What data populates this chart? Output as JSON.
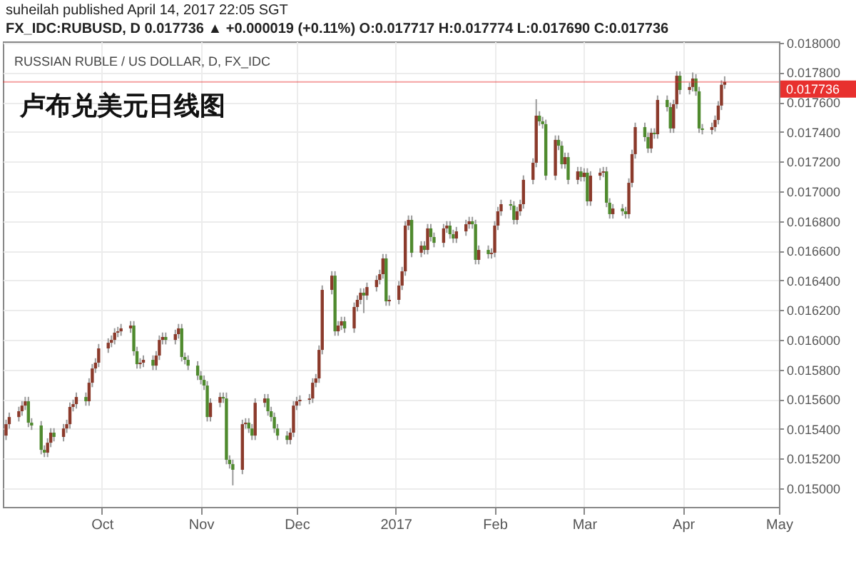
{
  "chart_data": {
    "type": "candlestick",
    "title": "RUSSIAN RUBLE / US DOLLAR, D, FX_IDC",
    "subtitle": "卢布兑美元日线图",
    "annotations": [
      "suheilah published April 14, 2017 22:05 SGT",
      "FX_IDC:RUBUSD, D  0.017736 ▲ +0.000019 (+0.11%)  O:0.017717  H:0.017774  L:0.017690  C:0.017736"
    ],
    "x": [
      "2016-09-01",
      "2016-09-02",
      "2016-09-05",
      "2016-09-06",
      "2016-09-07",
      "2016-09-08",
      "2016-09-09",
      "2016-09-12",
      "2016-09-13",
      "2016-09-14",
      "2016-09-15",
      "2016-09-16",
      "2016-09-19",
      "2016-09-20",
      "2016-09-21",
      "2016-09-22",
      "2016-09-23",
      "2016-09-26",
      "2016-09-27",
      "2016-09-28",
      "2016-09-29",
      "2016-09-30",
      "2016-10-03",
      "2016-10-04",
      "2016-10-05",
      "2016-10-06",
      "2016-10-07",
      "2016-10-10",
      "2016-10-11",
      "2016-10-12",
      "2016-10-13",
      "2016-10-14",
      "2016-10-17",
      "2016-10-18",
      "2016-10-19",
      "2016-10-20",
      "2016-10-21",
      "2016-10-24",
      "2016-10-25",
      "2016-10-26",
      "2016-10-27",
      "2016-10-28",
      "2016-10-31",
      "2016-11-01",
      "2016-11-02",
      "2016-11-03",
      "2016-11-04",
      "2016-11-07",
      "2016-11-08",
      "2016-11-09",
      "2016-11-10",
      "2016-11-11",
      "2016-11-14",
      "2016-11-15",
      "2016-11-16",
      "2016-11-17",
      "2016-11-18",
      "2016-11-21",
      "2016-11-22",
      "2016-11-23",
      "2016-11-24",
      "2016-11-25",
      "2016-11-28",
      "2016-11-29",
      "2016-11-30",
      "2016-12-01",
      "2016-12-02",
      "2016-12-05",
      "2016-12-06",
      "2016-12-07",
      "2016-12-08",
      "2016-12-09",
      "2016-12-12",
      "2016-12-13",
      "2016-12-14",
      "2016-12-15",
      "2016-12-16",
      "2016-12-19",
      "2016-12-20",
      "2016-12-21",
      "2016-12-22",
      "2016-12-23",
      "2016-12-26",
      "2016-12-27",
      "2016-12-28",
      "2016-12-29",
      "2016-12-30",
      "2017-01-02",
      "2017-01-03",
      "2017-01-04",
      "2017-01-05",
      "2017-01-06",
      "2017-01-09",
      "2017-01-10",
      "2017-01-11",
      "2017-01-12",
      "2017-01-13",
      "2017-01-16",
      "2017-01-17",
      "2017-01-18",
      "2017-01-19",
      "2017-01-20",
      "2017-01-23",
      "2017-01-24",
      "2017-01-25",
      "2017-01-26",
      "2017-01-27",
      "2017-01-30",
      "2017-01-31",
      "2017-02-01",
      "2017-02-02",
      "2017-02-03",
      "2017-02-06",
      "2017-02-07",
      "2017-02-08",
      "2017-02-09",
      "2017-02-10",
      "2017-02-13",
      "2017-02-14",
      "2017-02-15",
      "2017-02-16",
      "2017-02-17",
      "2017-02-20",
      "2017-02-21",
      "2017-02-22",
      "2017-02-23",
      "2017-02-24",
      "2017-02-27",
      "2017-02-28",
      "2017-03-01",
      "2017-03-02",
      "2017-03-03",
      "2017-03-06",
      "2017-03-07",
      "2017-03-08",
      "2017-03-09",
      "2017-03-10",
      "2017-03-13",
      "2017-03-14",
      "2017-03-15",
      "2017-03-16",
      "2017-03-17",
      "2017-03-20",
      "2017-03-21",
      "2017-03-22",
      "2017-03-23",
      "2017-03-24",
      "2017-03-27",
      "2017-03-28",
      "2017-03-29",
      "2017-03-30",
      "2017-03-31",
      "2017-04-03",
      "2017-04-04",
      "2017-04-05",
      "2017-04-06",
      "2017-04-07",
      "2017-04-10",
      "2017-04-11",
      "2017-04-12",
      "2017-04-13",
      "2017-04-14"
    ],
    "ohlc": [
      [
        0.015355,
        0.015462,
        0.015325,
        0.015432
      ],
      [
        0.015432,
        0.01551,
        0.015402,
        0.01548
      ],
      [
        0.01548,
        0.015549,
        0.01545,
        0.015519
      ],
      [
        0.015519,
        0.015587,
        0.015489,
        0.015557
      ],
      [
        0.015557,
        0.015616,
        0.015527,
        0.015586
      ],
      [
        0.015586,
        0.015616,
        0.015412,
        0.015442
      ],
      [
        0.015442,
        0.015472,
        0.015393,
        0.015423
      ],
      [
        0.015423,
        0.015453,
        0.015229,
        0.015259
      ],
      [
        0.015259,
        0.015289,
        0.01521,
        0.01524
      ],
      [
        0.01524,
        0.015337,
        0.01521,
        0.015307
      ],
      [
        0.015307,
        0.015405,
        0.015277,
        0.015375
      ],
      [
        0.015375,
        0.015405,
        0.015316,
        0.015346
      ],
      [
        0.015346,
        0.015433,
        0.015316,
        0.015403
      ],
      [
        0.015403,
        0.015462,
        0.015373,
        0.015432
      ],
      [
        0.015432,
        0.015578,
        0.015402,
        0.015548
      ],
      [
        0.015548,
        0.015597,
        0.015518,
        0.015567
      ],
      [
        0.015567,
        0.015645,
        0.015537,
        0.015615
      ],
      [
        0.015615,
        0.015645,
        0.015556,
        0.015586
      ],
      [
        0.015586,
        0.015741,
        0.015556,
        0.015711
      ],
      [
        0.015711,
        0.015837,
        0.015681,
        0.015807
      ],
      [
        0.015807,
        0.015876,
        0.015777,
        0.015846
      ],
      [
        0.015846,
        0.015972,
        0.015816,
        0.015942
      ],
      [
        0.015942,
        0.01601,
        0.015912,
        0.01598
      ],
      [
        0.01598,
        0.016029,
        0.01595,
        0.015999
      ],
      [
        0.015999,
        0.016078,
        0.015969,
        0.016048
      ],
      [
        0.016048,
        0.016087,
        0.016018,
        0.016057
      ],
      [
        0.016057,
        0.016107,
        0.016027,
        0.016077
      ],
      [
        0.016077,
        0.016126,
        0.016047,
        0.016096
      ],
      [
        0.016096,
        0.016126,
        0.015893,
        0.015923
      ],
      [
        0.015923,
        0.015953,
        0.015806,
        0.015836
      ],
      [
        0.015836,
        0.015876,
        0.015806,
        0.015846
      ],
      [
        0.015846,
        0.015895,
        0.015816,
        0.015865
      ],
      [
        0.015865,
        0.015895,
        0.015796,
        0.015826
      ],
      [
        0.015826,
        0.015924,
        0.015796,
        0.015894
      ],
      [
        0.015894,
        0.016029,
        0.015864,
        0.015999
      ],
      [
        0.015999,
        0.016049,
        0.015969,
        0.016019
      ],
      [
        0.016019,
        0.016049,
        0.015969,
        0.015999
      ],
      [
        0.015999,
        0.016068,
        0.015969,
        0.016038
      ],
      [
        0.016038,
        0.016107,
        0.016008,
        0.016077
      ],
      [
        0.016077,
        0.016107,
        0.015854,
        0.015884
      ],
      [
        0.015884,
        0.015914,
        0.015835,
        0.015865
      ],
      [
        0.015865,
        0.015895,
        0.015796,
        0.015826
      ],
      [
        0.015826,
        0.015856,
        0.015729,
        0.015759
      ],
      [
        0.015759,
        0.015789,
        0.0157,
        0.01573
      ],
      [
        0.01573,
        0.01576,
        0.015662,
        0.015692
      ],
      [
        0.015692,
        0.015722,
        0.01545,
        0.01548
      ],
      [
        0.01548,
        0.015606,
        0.01545,
        0.015576
      ],
      [
        0.015576,
        0.015645,
        0.015546,
        0.015615
      ],
      [
        0.015615,
        0.015645,
        0.015575,
        0.015605
      ],
      [
        0.015605,
        0.015645,
        0.015162,
        0.015192
      ],
      [
        0.015192,
        0.015222,
        0.015133,
        0.015163
      ],
      [
        0.015163,
        0.015193,
        0.01502,
        0.015125
      ],
      [
        0.015125,
        0.015462,
        0.015095,
        0.015432
      ],
      [
        0.015432,
        0.015472,
        0.015402,
        0.015442
      ],
      [
        0.015442,
        0.015472,
        0.015373,
        0.015403
      ],
      [
        0.015403,
        0.015433,
        0.015325,
        0.015355
      ],
      [
        0.015355,
        0.015606,
        0.015325,
        0.015576
      ],
      [
        0.015576,
        0.015635,
        0.015546,
        0.015605
      ],
      [
        0.015605,
        0.015635,
        0.015489,
        0.015519
      ],
      [
        0.015519,
        0.015549,
        0.01545,
        0.01548
      ],
      [
        0.01548,
        0.01551,
        0.015373,
        0.015403
      ],
      [
        0.015403,
        0.015433,
        0.015325,
        0.015355
      ],
      [
        0.015355,
        0.015385,
        0.015296,
        0.015326
      ],
      [
        0.015326,
        0.015405,
        0.015296,
        0.015375
      ],
      [
        0.015375,
        0.015587,
        0.015345,
        0.015557
      ],
      [
        0.015557,
        0.015616,
        0.015527,
        0.015586
      ],
      [
        0.015586,
        0.015626,
        0.015556,
        0.015596
      ],
      [
        0.015596,
        0.015635,
        0.015566,
        0.015605
      ],
      [
        0.015605,
        0.015741,
        0.015575,
        0.015711
      ],
      [
        0.015711,
        0.01577,
        0.015681,
        0.01574
      ],
      [
        0.01574,
        0.015962,
        0.01571,
        0.015932
      ],
      [
        0.015932,
        0.016366,
        0.015902,
        0.016336
      ],
      [
        0.016336,
        0.016462,
        0.016306,
        0.016432
      ],
      [
        0.016432,
        0.016462,
        0.016027,
        0.016057
      ],
      [
        0.016057,
        0.016126,
        0.016027,
        0.016096
      ],
      [
        0.016096,
        0.016155,
        0.016066,
        0.016125
      ],
      [
        0.016125,
        0.016155,
        0.016047,
        0.016077
      ],
      [
        0.016077,
        0.016251,
        0.016047,
        0.016221
      ],
      [
        0.016221,
        0.016299,
        0.016191,
        0.016269
      ],
      [
        0.016269,
        0.016347,
        0.016239,
        0.016317
      ],
      [
        0.016317,
        0.016347,
        0.01618,
        0.016298
      ],
      [
        0.016298,
        0.016385,
        0.016268,
        0.016355
      ],
      [
        0.016355,
        0.016433,
        0.016325,
        0.016403
      ],
      [
        0.016403,
        0.016472,
        0.016373,
        0.016442
      ],
      [
        0.016442,
        0.016578,
        0.016412,
        0.016548
      ],
      [
        0.016548,
        0.016578,
        0.016229,
        0.016259
      ],
      [
        0.016259,
        0.016299,
        0.016229,
        0.016269
      ],
      [
        0.016269,
        0.016395,
        0.016239,
        0.016365
      ],
      [
        0.016365,
        0.016491,
        0.016335,
        0.016461
      ],
      [
        0.016461,
        0.016799,
        0.016431,
        0.016769
      ],
      [
        0.016769,
        0.016837,
        0.016739,
        0.016807
      ],
      [
        0.016807,
        0.016837,
        0.016556,
        0.016586
      ],
      [
        0.016586,
        0.016664,
        0.016556,
        0.016634
      ],
      [
        0.016634,
        0.016664,
        0.016575,
        0.016605
      ],
      [
        0.016605,
        0.01678,
        0.016575,
        0.01675
      ],
      [
        0.01675,
        0.01678,
        0.016662,
        0.016692
      ],
      [
        0.016692,
        0.016722,
        0.016623,
        0.016653
      ],
      [
        0.016653,
        0.01678,
        0.016623,
        0.01675
      ],
      [
        0.01675,
        0.016799,
        0.01672,
        0.016769
      ],
      [
        0.016769,
        0.016799,
        0.016681,
        0.016711
      ],
      [
        0.016711,
        0.016741,
        0.016652,
        0.016682
      ],
      [
        0.016682,
        0.01676,
        0.016652,
        0.01673
      ],
      [
        0.01673,
        0.016808,
        0.0167,
        0.016778
      ],
      [
        0.016778,
        0.016828,
        0.016748,
        0.016798
      ],
      [
        0.016798,
        0.016828,
        0.016748,
        0.016778
      ],
      [
        0.016778,
        0.016808,
        0.016508,
        0.016538
      ],
      [
        0.016538,
        0.016635,
        0.016508,
        0.016605
      ],
      [
        0.016605,
        0.016635,
        0.016547,
        0.016577
      ],
      [
        0.016577,
        0.016616,
        0.016547,
        0.016586
      ],
      [
        0.016586,
        0.016799,
        0.016556,
        0.016769
      ],
      [
        0.016769,
        0.016895,
        0.016739,
        0.016865
      ],
      [
        0.016865,
        0.016943,
        0.016835,
        0.016913
      ],
      [
        0.016913,
        0.016943,
        0.016873,
        0.016903
      ],
      [
        0.016903,
        0.016933,
        0.016777,
        0.016807
      ],
      [
        0.016807,
        0.016895,
        0.016777,
        0.016865
      ],
      [
        0.016865,
        0.016943,
        0.016835,
        0.016913
      ],
      [
        0.016913,
        0.017107,
        0.016883,
        0.017077
      ],
      [
        0.017077,
        0.017222,
        0.017047,
        0.017192
      ],
      [
        0.017192,
        0.01762,
        0.017162,
        0.017509
      ],
      [
        0.017509,
        0.017539,
        0.017441,
        0.017471
      ],
      [
        0.017471,
        0.017501,
        0.017422,
        0.017452
      ],
      [
        0.017452,
        0.017482,
        0.017075,
        0.017105
      ],
      [
        0.017105,
        0.017376,
        0.017075,
        0.017346
      ],
      [
        0.017346,
        0.017376,
        0.017277,
        0.017307
      ],
      [
        0.017307,
        0.017337,
        0.017152,
        0.017182
      ],
      [
        0.017182,
        0.01726,
        0.017152,
        0.01723
      ],
      [
        0.01723,
        0.01726,
        0.017047,
        0.017077
      ],
      [
        0.017077,
        0.017164,
        0.017047,
        0.017134
      ],
      [
        0.017134,
        0.017164,
        0.017066,
        0.017096
      ],
      [
        0.017096,
        0.017155,
        0.017066,
        0.017125
      ],
      [
        0.017125,
        0.017155,
        0.016902,
        0.016932
      ],
      [
        0.016932,
        0.017135,
        0.016902,
        0.017105
      ],
      [
        0.017105,
        0.017155,
        0.017075,
        0.017125
      ],
      [
        0.017125,
        0.017164,
        0.017095,
        0.017134
      ],
      [
        0.017134,
        0.017164,
        0.016893,
        0.016923
      ],
      [
        0.016923,
        0.016953,
        0.016816,
        0.016846
      ],
      [
        0.016846,
        0.016914,
        0.016816,
        0.016884
      ],
      [
        0.016884,
        0.016914,
        0.016835,
        0.016865
      ],
      [
        0.016865,
        0.016895,
        0.016816,
        0.016846
      ],
      [
        0.016846,
        0.017087,
        0.016816,
        0.017057
      ],
      [
        0.017057,
        0.01728,
        0.017027,
        0.01725
      ],
      [
        0.01725,
        0.017462,
        0.01722,
        0.017432
      ],
      [
        0.017432,
        0.017462,
        0.017335,
        0.017365
      ],
      [
        0.017365,
        0.017395,
        0.017258,
        0.017288
      ],
      [
        0.017288,
        0.017424,
        0.017258,
        0.017394
      ],
      [
        0.017394,
        0.017424,
        0.017354,
        0.017384
      ],
      [
        0.017384,
        0.017645,
        0.017354,
        0.017615
      ],
      [
        0.017615,
        0.017645,
        0.017537,
        0.017567
      ],
      [
        0.017567,
        0.017597,
        0.017393,
        0.017423
      ],
      [
        0.017423,
        0.017616,
        0.017393,
        0.017586
      ],
      [
        0.017586,
        0.017808,
        0.017556,
        0.017778
      ],
      [
        0.017778,
        0.017808,
        0.017652,
        0.017682
      ],
      [
        0.017682,
        0.017732,
        0.017652,
        0.017702
      ],
      [
        0.017702,
        0.0178,
        0.017672,
        0.017759
      ],
      [
        0.017759,
        0.017789,
        0.017643,
        0.017673
      ],
      [
        0.017673,
        0.017703,
        0.017393,
        0.017423
      ],
      [
        0.017423,
        0.017453,
        0.017383,
        0.017413
      ],
      [
        0.017413,
        0.017462,
        0.017383,
        0.017432
      ],
      [
        0.017432,
        0.01751,
        0.017402,
        0.01748
      ],
      [
        0.01748,
        0.017607,
        0.01745,
        0.017577
      ],
      [
        0.017577,
        0.017747,
        0.017547,
        0.017717
      ],
      [
        0.017717,
        0.017774,
        0.01769,
        0.017736
      ]
    ],
    "xlim": [
      "2016-08-31",
      "2017-05-01"
    ],
    "xticks": [
      {
        "value": "2016-10-01",
        "label": "Oct"
      },
      {
        "value": "2016-11-01",
        "label": "Nov"
      },
      {
        "value": "2016-12-01",
        "label": "Dec"
      },
      {
        "value": "2017-01-01",
        "label": "2017"
      },
      {
        "value": "2017-02-01",
        "label": "Feb"
      },
      {
        "value": "2017-03-01",
        "label": "Mar"
      },
      {
        "value": "2017-04-01",
        "label": "Apr"
      },
      {
        "value": "2017-05-01",
        "label": "May"
      }
    ],
    "ylim": [
      0.014875,
      0.018009
    ],
    "yticks": [
      {
        "value": 0.015,
        "label": "0.015000"
      },
      {
        "value": 0.0152,
        "label": "0.015200"
      },
      {
        "value": 0.0154,
        "label": "0.015400"
      },
      {
        "value": 0.0156,
        "label": "0.015600"
      },
      {
        "value": 0.0158,
        "label": "0.015800"
      },
      {
        "value": 0.016,
        "label": "0.016000"
      },
      {
        "value": 0.0162,
        "label": "0.016200"
      },
      {
        "value": 0.0164,
        "label": "0.016400"
      },
      {
        "value": 0.0166,
        "label": "0.016600"
      },
      {
        "value": 0.0168,
        "label": "0.016800"
      },
      {
        "value": 0.017,
        "label": "0.017000"
      },
      {
        "value": 0.0172,
        "label": "0.017200"
      },
      {
        "value": 0.0174,
        "label": "0.017400"
      },
      {
        "value": 0.0176,
        "label": "0.017600"
      },
      {
        "value": 0.0178,
        "label": "0.017800"
      },
      {
        "value": 0.018,
        "label": "0.018000"
      }
    ],
    "ref_lines": [
      {
        "axis": "y",
        "value": 0.017736,
        "label": "0.017736",
        "color": "#e8302e"
      }
    ],
    "grid": true
  }
}
